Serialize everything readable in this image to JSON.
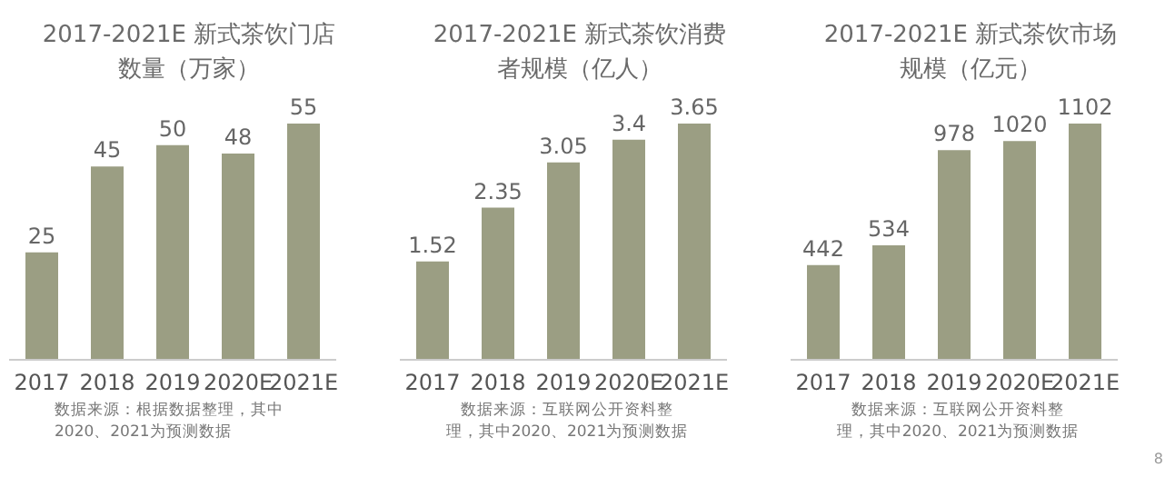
{
  "chart_data": [
    {
      "type": "bar",
      "title": "2017-2021E 新式茶饮门店数量（万家）",
      "categories": [
        "2017",
        "2018",
        "2019",
        "2020E",
        "2021E"
      ],
      "values": [
        25,
        45,
        50,
        48,
        55
      ],
      "color": "#9b9e83",
      "data_labels": true,
      "annotations": [
        "数据来源：根据数据整理，其中2020、2021为预测数据"
      ]
    },
    {
      "type": "bar",
      "title": "2017-2021E 新式茶饮消费者规模（亿人）",
      "categories": [
        "2017",
        "2018",
        "2019",
        "2020E",
        "2021E"
      ],
      "values": [
        1.52,
        2.35,
        3.05,
        3.4,
        3.65
      ],
      "color": "#9b9e83",
      "data_labels": true,
      "annotations": [
        "数据来源：互联网公开资料整理，其中2020、2021为预测数据"
      ]
    },
    {
      "type": "bar",
      "title": "2017-2021E 新式茶饮市场规模（亿元）",
      "categories": [
        "2017",
        "2018",
        "2019",
        "2020E",
        "2021E"
      ],
      "values": [
        442,
        534,
        978,
        1020,
        1102
      ],
      "color": "#9b9e83",
      "data_labels": true,
      "annotations": [
        "数据来源：互联网公开资料整理，其中2020、2021为预测数据",
        "8"
      ]
    }
  ]
}
